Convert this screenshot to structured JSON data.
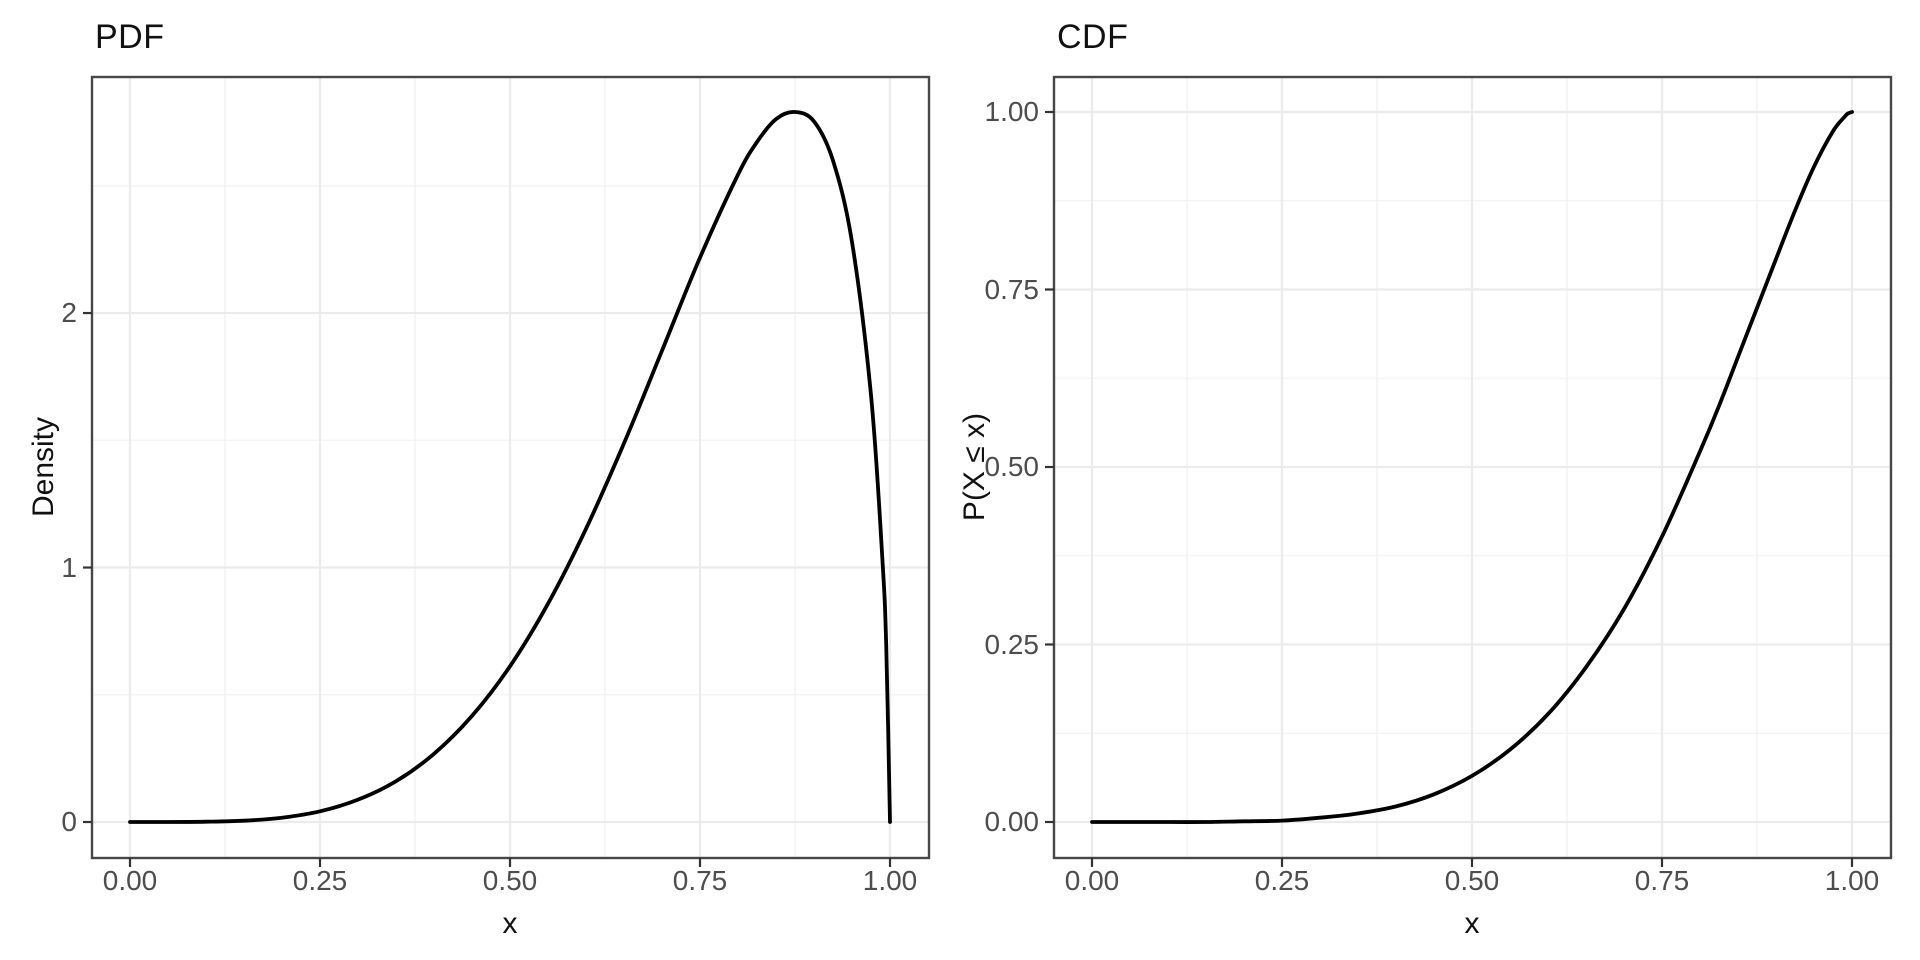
{
  "page": {
    "background": "#FFFFFF"
  },
  "colors": {
    "curve": "#000000",
    "grid_major": "#EBEBEB",
    "grid_minor": "#F2F2F2",
    "panel_border": "#474747",
    "tick_mark": "#333333",
    "tick_label": "#4D4D4D",
    "title_text": "#111111",
    "panel_background": "#FFFFFF"
  },
  "chart_data": [
    {
      "type": "line",
      "title": "PDF",
      "xlabel": "x",
      "ylabel": "Density",
      "legend": "none",
      "grid": true,
      "xlim": [
        0,
        1
      ],
      "ylim": [
        0,
        2.79
      ],
      "x_tick_values": [
        0,
        0.25,
        0.5,
        0.75,
        1
      ],
      "x_tick_labels": [
        "0.00",
        "0.25",
        "0.50",
        "0.75",
        "1.00"
      ],
      "y_tick_values": [
        0,
        1,
        2
      ],
      "y_tick_labels": [
        "0",
        "1",
        "2"
      ],
      "x_minor_gridlines": [
        0.125,
        0.375,
        0.625,
        0.875
      ],
      "y_minor_gridlines": [
        0.5,
        1.5,
        2.5
      ],
      "peak": {
        "x": 0.875,
        "y": 2.79
      },
      "x": [
        0,
        0.05,
        0.1,
        0.15,
        0.2,
        0.25,
        0.3,
        0.35,
        0.4,
        0.45,
        0.5,
        0.55,
        0.6,
        0.65,
        0.7,
        0.75,
        0.8,
        0.825,
        0.85,
        0.875,
        0.9,
        0.925,
        0.95,
        0.975,
        0.99,
        0.995,
        1.0
      ],
      "y": [
        0,
        0.0,
        0.001,
        0.005,
        0.017,
        0.042,
        0.088,
        0.16,
        0.268,
        0.417,
        0.612,
        0.858,
        1.152,
        1.488,
        1.852,
        2.218,
        2.544,
        2.672,
        2.762,
        2.79,
        2.753,
        2.599,
        2.279,
        1.677,
        1.032,
        0.697,
        0
      ]
    },
    {
      "type": "line",
      "title": "CDF",
      "xlabel": "x",
      "ylabel": "P(X ≤ x)",
      "legend": "none",
      "grid": true,
      "xlim": [
        0,
        1
      ],
      "ylim": [
        0,
        1
      ],
      "x_tick_values": [
        0,
        0.25,
        0.5,
        0.75,
        1
      ],
      "x_tick_labels": [
        "0.00",
        "0.25",
        "0.50",
        "0.75",
        "1.00"
      ],
      "y_tick_values": [
        0,
        0.25,
        0.5,
        0.75,
        1
      ],
      "y_tick_labels": [
        "0.00",
        "0.25",
        "0.50",
        "0.75",
        "1.00"
      ],
      "x_minor_gridlines": [
        0.125,
        0.375,
        0.625,
        0.875
      ],
      "y_minor_gridlines": [
        0.125,
        0.375,
        0.625,
        0.875
      ],
      "x": [
        0,
        0.05,
        0.1,
        0.15,
        0.2,
        0.25,
        0.3,
        0.35,
        0.4,
        0.45,
        0.5,
        0.55,
        0.6,
        0.65,
        0.7,
        0.75,
        0.8,
        0.825,
        0.85,
        0.875,
        0.9,
        0.925,
        0.95,
        0.975,
        0.99,
        0.995,
        1.0
      ],
      "y": [
        0,
        0.0,
        0.0,
        0.0,
        0.001,
        0.002,
        0.006,
        0.012,
        0.022,
        0.039,
        0.065,
        0.102,
        0.152,
        0.218,
        0.3,
        0.402,
        0.522,
        0.586,
        0.655,
        0.724,
        0.793,
        0.861,
        0.923,
        0.973,
        0.993,
        0.998,
        1.0
      ]
    }
  ]
}
